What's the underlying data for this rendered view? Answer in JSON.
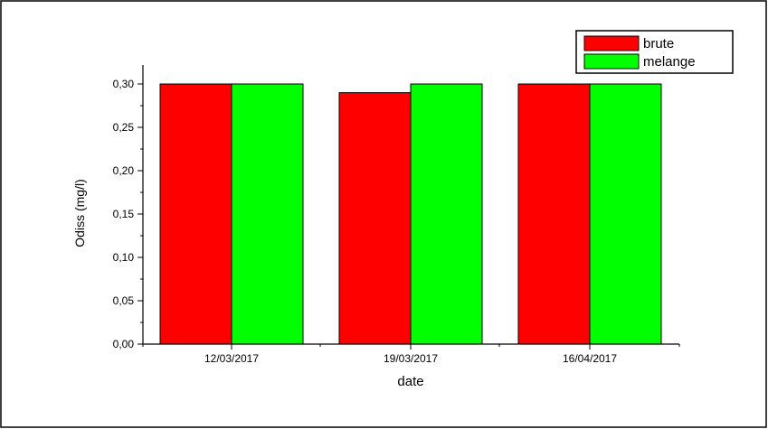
{
  "chart_data": {
    "type": "bar",
    "categories": [
      "12/03/2017",
      "19/03/2017",
      "16/04/2017"
    ],
    "series": [
      {
        "name": "brute",
        "color": "#ff0000",
        "values": [
          0.3,
          0.29,
          0.3
        ]
      },
      {
        "name": "melange",
        "color": "#00ff00",
        "values": [
          0.3,
          0.3,
          0.3
        ]
      }
    ],
    "title": "",
    "xlabel": "date",
    "ylabel": "Odiss (mg/l)",
    "ylim": [
      0,
      0.35
    ],
    "yticks": [
      {
        "value": 0.0,
        "label": "0,00"
      },
      {
        "value": 0.05,
        "label": "0,05"
      },
      {
        "value": 0.1,
        "label": "0,10"
      },
      {
        "value": 0.15,
        "label": "0,15"
      },
      {
        "value": 0.2,
        "label": "0,20"
      },
      {
        "value": 0.25,
        "label": "0,25"
      },
      {
        "value": 0.3,
        "label": "0,30"
      }
    ],
    "grid": false,
    "legend_position": "top-right"
  }
}
